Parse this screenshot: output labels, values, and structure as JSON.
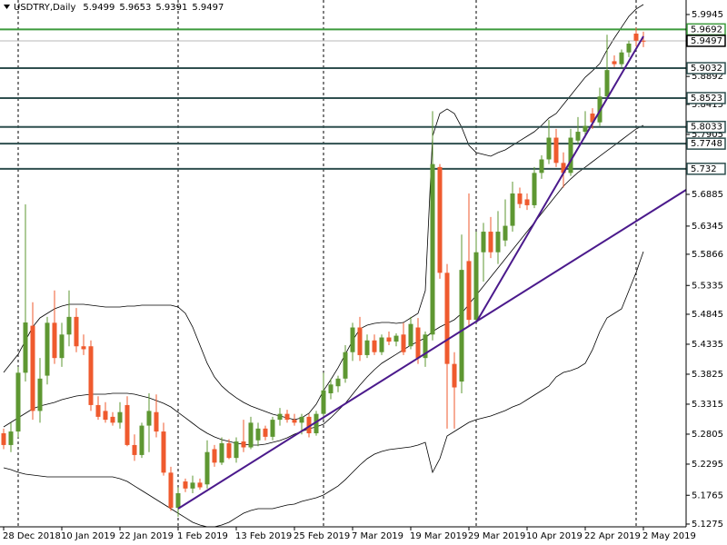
{
  "chart_data": {
    "type": "candlestick",
    "symbol": "USDTRY,Daily",
    "categories": [
      "28 Dec 2018",
      null,
      null,
      null,
      null,
      null,
      null,
      null,
      "10 Jan 2019",
      null,
      null,
      null,
      null,
      null,
      null,
      null,
      "22 Jan 2019",
      null,
      null,
      null,
      null,
      null,
      null,
      null,
      "1 Feb 2019",
      null,
      null,
      null,
      null,
      null,
      null,
      null,
      "13 Feb 2019",
      null,
      null,
      null,
      null,
      null,
      null,
      null,
      "25 Feb 2019",
      null,
      null,
      null,
      null,
      null,
      null,
      null,
      "7 Mar 2019",
      null,
      null,
      null,
      null,
      null,
      null,
      null,
      "19 Mar 2019",
      null,
      null,
      null,
      null,
      null,
      null,
      null,
      "29 Mar 2019",
      null,
      null,
      null,
      null,
      null,
      null,
      null,
      "10 Apr 2019",
      null,
      null,
      null,
      null,
      null,
      null,
      null,
      "22 Apr 2019",
      null,
      null,
      null,
      null,
      null,
      null,
      null,
      "2 May 2019"
    ],
    "open": [
      5.282,
      5.262,
      5.285,
      5.385,
      5.465,
      5.32,
      5.38,
      5.47,
      5.41,
      5.45,
      5.48,
      5.43,
      5.43,
      5.33,
      5.32,
      5.31,
      5.3,
      5.33,
      5.262,
      5.245,
      5.295,
      5.318,
      5.285,
      5.215,
      5.155,
      5.2,
      5.188,
      5.198,
      5.195,
      5.255,
      5.232,
      5.265,
      5.24,
      5.268,
      5.258,
      5.27,
      5.29,
      5.276,
      5.305,
      5.315,
      5.305,
      5.3,
      5.31,
      5.282,
      5.315,
      5.35,
      5.362,
      5.375,
      5.42,
      5.462,
      5.415,
      5.44,
      5.42,
      5.445,
      5.438,
      5.45,
      5.43,
      5.462,
      5.41,
      5.45,
      5.735,
      5.555,
      5.4,
      5.37,
      5.575,
      5.475,
      5.59,
      5.625,
      5.59,
      5.61,
      5.635,
      5.69,
      5.68,
      5.67,
      5.725,
      5.748,
      5.785,
      5.742,
      5.725,
      5.78,
      5.795,
      5.826,
      5.811,
      5.855,
      5.915,
      5.91,
      5.93,
      5.962,
      5.9499
    ],
    "high": [
      5.29,
      5.3,
      5.395,
      5.6715,
      5.505,
      5.41,
      5.48,
      5.525,
      5.47,
      5.525,
      5.495,
      5.45,
      5.44,
      5.345,
      5.335,
      5.318,
      5.335,
      5.345,
      5.28,
      5.3,
      5.35,
      5.348,
      5.3,
      5.225,
      5.19,
      5.205,
      5.21,
      5.205,
      5.27,
      5.262,
      5.275,
      5.272,
      5.275,
      5.305,
      5.31,
      5.3,
      5.295,
      5.31,
      5.325,
      5.322,
      5.315,
      5.315,
      5.315,
      5.32,
      5.385,
      5.375,
      5.38,
      5.432,
      5.47,
      5.48,
      5.45,
      5.45,
      5.45,
      5.455,
      5.452,
      5.47,
      5.48,
      5.478,
      5.455,
      5.83,
      5.74,
      5.57,
      5.42,
      5.62,
      5.69,
      5.625,
      5.64,
      5.65,
      5.66,
      5.68,
      5.71,
      5.7,
      5.69,
      5.735,
      5.755,
      5.815,
      5.8,
      5.76,
      5.8,
      5.82,
      5.83,
      5.835,
      5.87,
      5.96,
      5.925,
      5.935,
      5.95,
      5.972,
      5.9653
    ],
    "low": [
      5.255,
      5.25,
      5.275,
      5.37,
      5.305,
      5.3,
      5.365,
      5.4,
      5.395,
      5.43,
      5.42,
      5.415,
      5.32,
      5.305,
      5.3,
      5.295,
      5.29,
      5.26,
      5.235,
      5.24,
      5.25,
      5.275,
      5.21,
      5.15,
      5.14,
      5.182,
      5.18,
      5.186,
      5.188,
      5.225,
      5.228,
      5.238,
      5.232,
      5.25,
      5.255,
      5.26,
      5.27,
      5.27,
      5.295,
      5.3,
      5.295,
      5.28,
      5.275,
      5.278,
      5.305,
      5.34,
      5.352,
      5.368,
      5.405,
      5.405,
      5.41,
      5.415,
      5.415,
      5.432,
      5.43,
      5.415,
      5.425,
      5.4,
      5.395,
      5.44,
      5.545,
      5.29,
      5.29,
      5.35,
      5.465,
      5.468,
      5.54,
      5.58,
      5.57,
      5.6,
      5.625,
      5.665,
      5.662,
      5.665,
      5.715,
      5.74,
      5.735,
      5.7,
      5.72,
      5.775,
      5.785,
      5.8,
      5.805,
      5.85,
      5.905,
      5.905,
      5.922,
      5.94,
      5.9391
    ],
    "close": [
      5.262,
      5.285,
      5.385,
      5.4705,
      5.32,
      5.375,
      5.47,
      5.41,
      5.45,
      5.48,
      5.43,
      5.425,
      5.33,
      5.31,
      5.305,
      5.3,
      5.318,
      5.262,
      5.245,
      5.295,
      5.32,
      5.285,
      5.215,
      5.155,
      5.18,
      5.188,
      5.198,
      5.19,
      5.25,
      5.232,
      5.265,
      5.24,
      5.268,
      5.258,
      5.3,
      5.29,
      5.276,
      5.305,
      5.315,
      5.305,
      5.3,
      5.31,
      5.282,
      5.315,
      5.355,
      5.365,
      5.375,
      5.42,
      5.462,
      5.415,
      5.44,
      5.42,
      5.445,
      5.438,
      5.448,
      5.42,
      5.468,
      5.41,
      5.45,
      5.74,
      5.555,
      5.4,
      5.36,
      5.56,
      5.475,
      5.59,
      5.625,
      5.59,
      5.625,
      5.635,
      5.69,
      5.672,
      5.67,
      5.725,
      5.748,
      5.785,
      5.742,
      5.725,
      5.785,
      5.795,
      5.805,
      5.811,
      5.855,
      5.9,
      5.91,
      5.93,
      5.945,
      5.95,
      5.9497
    ],
    "up_color": "#5e9732",
    "down_color": "#ef5a2e",
    "series": [
      {
        "color": "#000000",
        "values": [
          5.3855,
          5.401,
          5.4164,
          5.4396,
          5.4628,
          5.4783,
          5.486,
          5.4937,
          5.4984,
          5.5014,
          5.5014,
          5.5014,
          5.4999,
          5.4984,
          5.4968,
          5.4968,
          5.4968,
          5.4984,
          5.4984,
          5.4999,
          5.4999,
          5.4999,
          5.4999,
          5.4999,
          5.4968,
          5.486,
          5.4628,
          5.4319,
          5.401,
          5.3778,
          5.3624,
          5.3515,
          5.3423,
          5.3345,
          5.3283,
          5.3237,
          5.3191,
          5.3144,
          5.3113,
          5.3083,
          5.3052,
          5.3083,
          5.316,
          5.3314,
          5.3546,
          5.3732,
          5.3933,
          5.4164,
          5.4396,
          5.4597,
          5.4659,
          5.469,
          5.4705,
          5.4705,
          5.469,
          5.4705,
          5.4783,
          5.486,
          5.5246,
          5.7874,
          5.826,
          5.8338,
          5.826,
          5.8028,
          5.7719,
          5.7596,
          5.7565,
          5.7534,
          5.7596,
          5.7642,
          5.7719,
          5.7797,
          5.7874,
          5.7951,
          5.8059,
          5.8183,
          5.826,
          5.8415,
          5.8569,
          5.8724,
          5.8878,
          5.8987,
          5.911,
          5.9342,
          5.9543,
          5.9729,
          5.9914,
          6.0038,
          6.0115
        ]
      },
      {
        "color": "#000000",
        "values": [
          5.2928,
          5.3005,
          5.3083,
          5.316,
          5.3237,
          5.3283,
          5.3314,
          5.3345,
          5.3392,
          5.3423,
          5.3453,
          5.3469,
          5.3484,
          5.3484,
          5.3484,
          5.35,
          5.35,
          5.35,
          5.3484,
          5.3453,
          5.3423,
          5.3376,
          5.333,
          5.3268,
          5.3175,
          5.3083,
          5.299,
          5.2897,
          5.282,
          5.2758,
          5.2712,
          5.2681,
          5.265,
          5.2634,
          5.2619,
          5.2619,
          5.2634,
          5.2665,
          5.2696,
          5.2742,
          5.2804,
          5.2851,
          5.2897,
          5.2928,
          5.2974,
          5.3083,
          5.3206,
          5.333,
          5.3484,
          5.3639,
          5.3778,
          5.3902,
          5.401,
          5.4087,
          5.4164,
          5.4242,
          5.4319,
          5.4381,
          5.4443,
          5.4551,
          5.4628,
          5.469,
          5.4752,
          5.486,
          5.5014,
          5.5169,
          5.5323,
          5.5478,
          5.5633,
          5.5787,
          5.5942,
          5.6096,
          5.6251,
          5.6406,
          5.656,
          5.6715,
          5.6869,
          5.7024,
          5.7147,
          5.7256,
          5.7348,
          5.7441,
          5.7534,
          5.7627,
          5.7719,
          5.7812,
          5.7905,
          5.7998,
          5.8059
        ]
      },
      {
        "color": "#000000",
        "values": [
          5.2232,
          5.2201,
          5.2155,
          5.2124,
          5.2109,
          5.2093,
          5.2078,
          5.2078,
          5.2078,
          5.2078,
          5.2078,
          5.2078,
          5.2078,
          5.2078,
          5.2078,
          5.2078,
          5.2047,
          5.2001,
          5.1923,
          5.1846,
          5.1769,
          5.1692,
          5.1614,
          5.1537,
          5.146,
          5.1383,
          5.1305,
          5.1259,
          5.1228,
          5.1228,
          5.1259,
          5.1305,
          5.1383,
          5.146,
          5.1506,
          5.1537,
          5.1537,
          5.1537,
          5.1568,
          5.1599,
          5.1614,
          5.1661,
          5.1692,
          5.1722,
          5.1769,
          5.1846,
          5.1923,
          5.2031,
          5.2155,
          5.2279,
          5.2387,
          5.2464,
          5.2511,
          5.2542,
          5.2557,
          5.2572,
          5.2588,
          5.2619,
          5.2665,
          5.2155,
          5.2387,
          5.2773,
          5.2851,
          5.2928,
          5.3005,
          5.3052,
          5.3083,
          5.3113,
          5.316,
          5.3206,
          5.3268,
          5.3314,
          5.3392,
          5.3469,
          5.3546,
          5.3624,
          5.3778,
          5.3855,
          5.3886,
          5.3933,
          5.401,
          5.4242,
          5.4551,
          5.4783,
          5.486,
          5.4937,
          5.5246,
          5.5556,
          5.5911
        ]
      }
    ],
    "levels": [
      {
        "value": 5.9692,
        "color": "#3c9a3c"
      },
      {
        "value": 5.9032,
        "color": "#2f4f4f"
      },
      {
        "value": 5.8523,
        "color": "#2f4f4f"
      },
      {
        "value": 5.8033,
        "color": "#2f4f4f"
      },
      {
        "value": 5.7748,
        "color": "#2f4f4f"
      },
      {
        "value": 5.732,
        "color": "#2f4f4f"
      }
    ],
    "price_line_color": "#b8b8b8",
    "trendlines": [
      {
        "from": [
          24,
          5.1537
        ],
        "to": [
          65,
          5.472
        ],
        "extend": true,
        "color": "#4b1a8c"
      },
      {
        "from": [
          65,
          5.4705
        ],
        "to": [
          88,
          5.9574
        ],
        "extend": false,
        "color": "#4b1a8c"
      }
    ],
    "period_separators": [
      2,
      24,
      44,
      65,
      87
    ],
    "ylim": [
      5.1228,
      6.0192
    ],
    "yticks": [
      5.9945,
      5.8892,
      5.8415,
      5.7905,
      5.6885,
      5.6345,
      5.5866,
      5.5335,
      5.4845,
      5.4335,
      5.3825,
      5.3315,
      5.2805,
      5.2295,
      5.1765,
      5.1275
    ]
  }
}
